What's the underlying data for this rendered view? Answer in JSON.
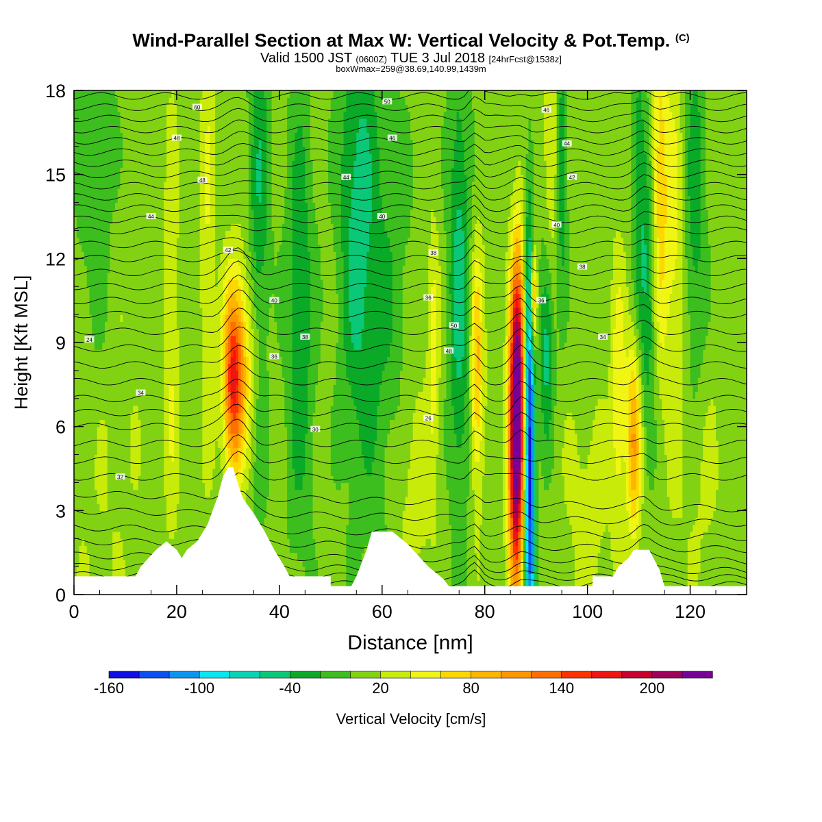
{
  "header": {
    "title": "Wind-Parallel Section at Max W: Vertical Velocity & Pot.Temp.",
    "title_mark": "(C)",
    "valid_prefix": "Valid 1500 JST",
    "valid_utc": "(0600Z)",
    "valid_date": "TUE 3 Jul 2018",
    "valid_fcst": "[24hrFcst@1538z]",
    "box_info": "boxWmax=259@38.69,140.99,1439m"
  },
  "chart_data": {
    "type": "heatmap",
    "xlabel": "Distance [nm]",
    "ylabel": "Height [Kft MSL]",
    "xlim": [
      0,
      131
    ],
    "ylim": [
      0,
      18
    ],
    "x_ticks": [
      0,
      20,
      40,
      60,
      80,
      100,
      120
    ],
    "y_ticks": [
      0,
      3,
      6,
      9,
      12,
      15,
      18
    ],
    "colorbar": {
      "label": "Vertical Velocity [cm/s]",
      "tick_labels": [
        "-160",
        "-100",
        "-40",
        "20",
        "80",
        "140",
        "200"
      ],
      "tick_values": [
        -160,
        -100,
        -40,
        20,
        80,
        140,
        200
      ],
      "levels": [
        -160,
        -140,
        -120,
        -100,
        -80,
        -60,
        -40,
        -20,
        0,
        20,
        40,
        60,
        80,
        100,
        120,
        140,
        160,
        180,
        200,
        220,
        240
      ],
      "colors": [
        "#1010e6",
        "#0a50f0",
        "#0a96f0",
        "#0ae6f0",
        "#0ad2b4",
        "#0ac878",
        "#0aaa28",
        "#3cbe1e",
        "#82d214",
        "#c8eb0a",
        "#f0f514",
        "#ffd700",
        "#ffb400",
        "#ff9600",
        "#ff6e00",
        "#ff3200",
        "#f01414",
        "#c8002d",
        "#a0005a",
        "#780096"
      ]
    },
    "contour_labels": [
      "60",
      "48",
      "48",
      "44",
      "42",
      "40",
      "38",
      "36",
      "34",
      "32",
      "30",
      "26",
      "24",
      "50",
      "46",
      "44",
      "40",
      "38",
      "36",
      "50",
      "48",
      "46",
      "44",
      "42",
      "40",
      "38",
      "36",
      "34"
    ],
    "terrain_kft": [
      [
        0,
        0.65
      ],
      [
        12,
        0.65
      ],
      [
        13,
        1.0
      ],
      [
        16,
        1.6
      ],
      [
        18,
        1.9
      ],
      [
        20,
        1.6
      ],
      [
        21,
        1.3
      ],
      [
        22,
        1.6
      ],
      [
        24,
        1.9
      ],
      [
        26,
        2.5
      ],
      [
        28,
        3.5
      ],
      [
        29,
        4.2
      ],
      [
        30,
        4.55
      ],
      [
        31,
        4.55
      ],
      [
        32,
        3.9
      ],
      [
        33,
        3.4
      ],
      [
        35,
        2.9
      ],
      [
        37,
        2.3
      ],
      [
        39,
        1.6
      ],
      [
        41,
        1.0
      ],
      [
        42,
        0.65
      ],
      [
        45,
        0.65
      ],
      [
        50,
        0.65
      ],
      [
        50,
        0.3
      ],
      [
        54,
        0.3
      ],
      [
        55,
        0.65
      ],
      [
        57,
        1.6
      ],
      [
        58,
        2.25
      ],
      [
        62,
        2.25
      ],
      [
        65,
        1.8
      ],
      [
        69,
        1.0
      ],
      [
        72,
        0.55
      ],
      [
        73,
        0.3
      ],
      [
        101,
        0.3
      ],
      [
        101,
        0.65
      ],
      [
        105,
        0.65
      ],
      [
        106,
        1.0
      ],
      [
        108,
        1.3
      ],
      [
        109,
        1.6
      ],
      [
        112,
        1.6
      ],
      [
        114,
        0.9
      ],
      [
        115,
        0.3
      ],
      [
        131,
        0.3
      ]
    ]
  }
}
